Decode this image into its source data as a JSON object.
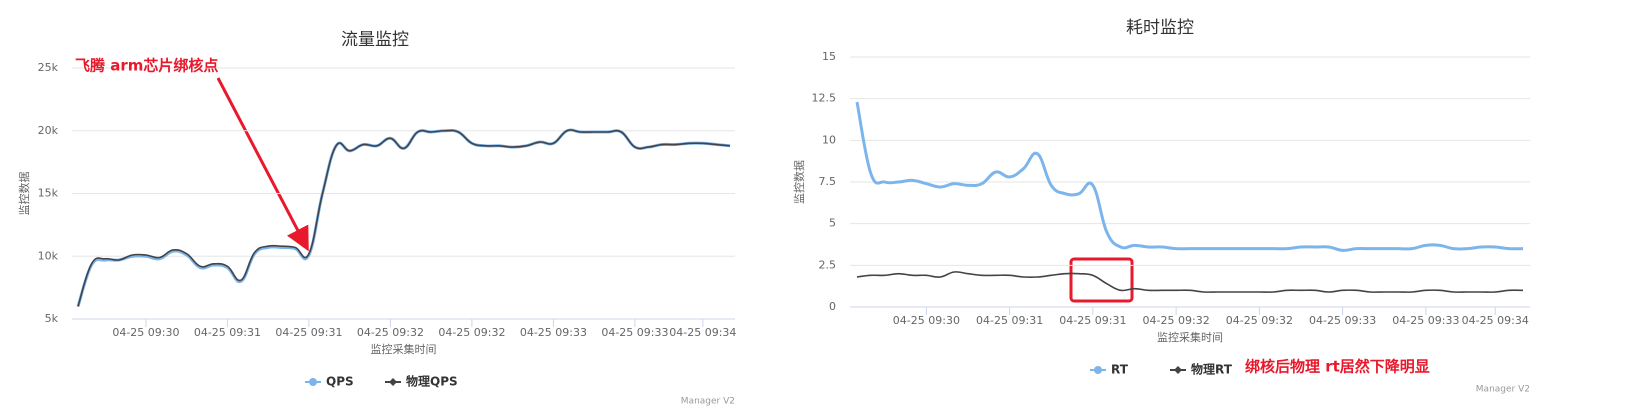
{
  "chart_data": [
    {
      "type": "line",
      "title": "流量监控",
      "y_title": "监控数据",
      "x_title": "监控采集时间",
      "annotations": [
        {
          "text": "飞腾 arm芯片绑核点"
        }
      ],
      "credit": "Manager V2",
      "grid": true,
      "categories": [
        null,
        null,
        null,
        null,
        null,
        "04-25 09:30",
        null,
        null,
        null,
        null,
        null,
        "04-25 09:31",
        null,
        null,
        null,
        null,
        null,
        "04-25 09:31",
        null,
        null,
        null,
        null,
        null,
        "04-25 09:32",
        null,
        null,
        null,
        null,
        null,
        "04-25 09:32",
        null,
        null,
        null,
        null,
        null,
        "04-25 09:33",
        null,
        null,
        null,
        null,
        null,
        "04-25 09:33",
        null,
        null,
        null,
        null,
        "04-25 09:34",
        null,
        null
      ],
      "ylim": [
        5000,
        25000
      ],
      "yticks": [
        {
          "value": 5000,
          "label": "5k"
        },
        {
          "value": 10000,
          "label": "10k"
        },
        {
          "value": 15000,
          "label": "15k"
        },
        {
          "value": 20000,
          "label": "20k"
        },
        {
          "value": 25000,
          "label": "25k"
        }
      ],
      "series": [
        {
          "name": "QPS",
          "color": "#7cb5ec",
          "values": [
            6000,
            9300,
            9700,
            9700,
            10000,
            10000,
            9800,
            10400,
            10100,
            9100,
            9300,
            9100,
            8000,
            10200,
            10700,
            10700,
            10600,
            10100,
            15000,
            18800,
            18400,
            18900,
            18800,
            19400,
            18600,
            19900,
            19900,
            20000,
            19900,
            19000,
            18800,
            18800,
            18700,
            18800,
            19100,
            19000,
            20000,
            19900,
            19900,
            19900,
            19900,
            18700,
            18700,
            18900,
            18900,
            19000,
            19000,
            18900,
            18800
          ]
        },
        {
          "name": "物理QPS",
          "color": "#434348",
          "values": [
            6000,
            9400,
            9800,
            9700,
            10100,
            10100,
            9900,
            10500,
            10200,
            9200,
            9400,
            9200,
            8100,
            10300,
            10800,
            10800,
            10700,
            10200,
            15000,
            18800,
            18400,
            18900,
            18800,
            19400,
            18600,
            19900,
            19900,
            20000,
            19900,
            19000,
            18800,
            18800,
            18700,
            18800,
            19100,
            19000,
            20000,
            19900,
            19900,
            19900,
            19900,
            18700,
            18700,
            18900,
            18900,
            19000,
            19000,
            18900,
            18800
          ]
        }
      ]
    },
    {
      "type": "line",
      "title": "耗时监控",
      "y_title": "监控数据",
      "x_title": "监控采集时间",
      "annotations": [
        {
          "text": "绑核后物理 rt居然下降明显"
        }
      ],
      "credit": "Manager V2",
      "grid": true,
      "categories": [
        null,
        null,
        null,
        null,
        null,
        "04-25 09:30",
        null,
        null,
        null,
        null,
        null,
        "04-25 09:31",
        null,
        null,
        null,
        null,
        null,
        "04-25 09:31",
        null,
        null,
        null,
        null,
        null,
        "04-25 09:32",
        null,
        null,
        null,
        null,
        null,
        "04-25 09:32",
        null,
        null,
        null,
        null,
        null,
        "04-25 09:33",
        null,
        null,
        null,
        null,
        null,
        "04-25 09:33",
        null,
        null,
        null,
        null,
        "04-25 09:34",
        null,
        null
      ],
      "ylim": [
        0,
        15
      ],
      "yticks": [
        0,
        2.5,
        5,
        7.5,
        10,
        12.5,
        15
      ],
      "series": [
        {
          "name": "RT",
          "color": "#7cb5ec",
          "values": [
            12.3,
            8.0,
            7.5,
            7.5,
            7.6,
            7.4,
            7.2,
            7.4,
            7.3,
            7.4,
            8.1,
            7.8,
            8.3,
            9.2,
            7.3,
            6.8,
            6.8,
            7.3,
            4.5,
            3.6,
            3.7,
            3.6,
            3.6,
            3.5,
            3.5,
            3.5,
            3.5,
            3.5,
            3.5,
            3.5,
            3.5,
            3.5,
            3.6,
            3.6,
            3.6,
            3.4,
            3.5,
            3.5,
            3.5,
            3.5,
            3.5,
            3.7,
            3.7,
            3.5,
            3.5,
            3.6,
            3.6,
            3.5,
            3.5
          ]
        },
        {
          "name": "物理RT",
          "color": "#434348",
          "values": [
            1.8,
            1.9,
            1.9,
            2.0,
            1.9,
            1.9,
            1.8,
            2.1,
            2.0,
            1.9,
            1.9,
            1.9,
            1.8,
            1.8,
            1.9,
            2.0,
            2.0,
            1.9,
            1.4,
            1.0,
            1.1,
            1.0,
            1.0,
            1.0,
            1.0,
            0.9,
            0.9,
            0.9,
            0.9,
            0.9,
            0.9,
            1.0,
            1.0,
            1.0,
            0.9,
            1.0,
            1.0,
            0.9,
            0.9,
            0.9,
            0.9,
            1.0,
            1.0,
            0.9,
            0.9,
            0.9,
            0.9,
            1.0,
            1.0
          ]
        }
      ]
    }
  ]
}
